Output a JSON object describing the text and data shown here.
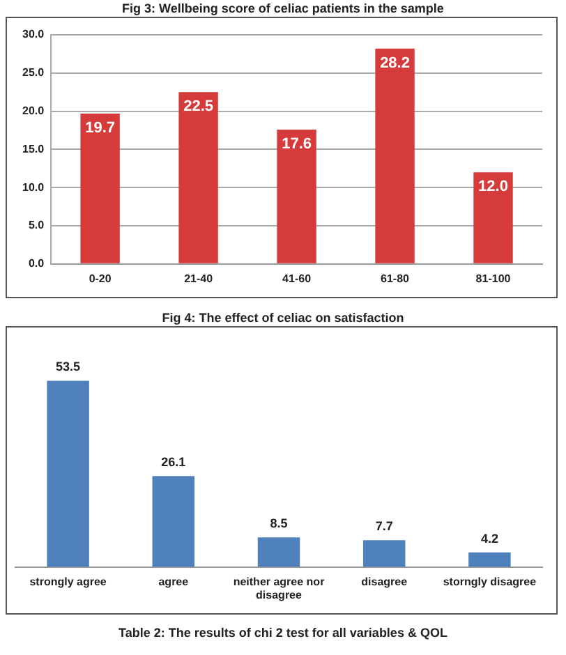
{
  "chart_data": [
    {
      "type": "bar",
      "title": "Fig 3: Wellbeing score of celiac patients in the sample",
      "categories": [
        "0-20",
        "21-40",
        "41-60",
        "61-80",
        "81-100"
      ],
      "values": [
        19.7,
        22.5,
        17.6,
        28.2,
        12.0
      ],
      "color": "#d63b3b",
      "ylim": [
        0,
        30
      ],
      "yticks": [
        {
          "value": 0,
          "label": "0.0"
        },
        {
          "value": 5,
          "label": "5.0"
        },
        {
          "value": 10,
          "label": "10.0"
        },
        {
          "value": 15,
          "label": "15.0"
        },
        {
          "value": 20,
          "label": "20.0"
        },
        {
          "value": 25,
          "label": "25.0"
        },
        {
          "value": 30,
          "label": "30.0"
        }
      ],
      "grid": "y",
      "data_labels": true,
      "value_labels": [
        "19.7",
        "22.5",
        "17.6",
        "28.2",
        "12.0"
      ]
    },
    {
      "type": "bar",
      "title": "Fig 4: The effect of celiac on satisfaction",
      "categories": [
        "strongly agree",
        "agree",
        "neither agree nor disagree",
        "disagree",
        "storngly disagree"
      ],
      "values": [
        53.5,
        26.1,
        8.5,
        7.7,
        4.2
      ],
      "color": "#4f81bd",
      "data_labels": true,
      "tick_labels": "x",
      "annotations": [
        "Table 2: The results of chi 2 test for all variables & QOL"
      ]
    }
  ]
}
